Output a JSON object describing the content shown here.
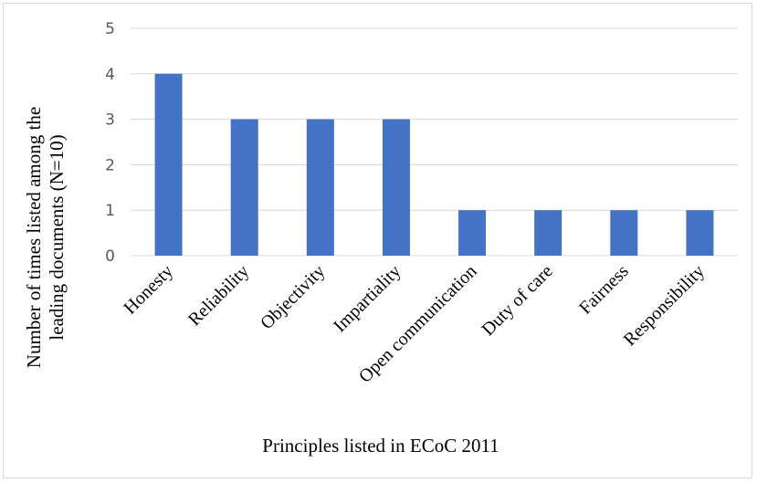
{
  "chart_data": {
    "type": "bar",
    "categories": [
      "Honesty",
      "Reliability",
      "Objectivity",
      "Impartiality",
      "Open communication",
      "Duty of care",
      "Fairness",
      "Responsibility"
    ],
    "values": [
      4,
      3,
      3,
      3,
      1,
      1,
      1,
      1
    ],
    "title": "",
    "xlabel": "Principles listed in ECoC 2011",
    "ylabel_lines": [
      "Number of times listed among the",
      "leading documents (N=10)"
    ],
    "ylim": [
      0,
      5
    ],
    "yticks": [
      0,
      1,
      2,
      3,
      4,
      5
    ],
    "bar_color": "#4472C4",
    "grid": true,
    "legend": "none"
  }
}
